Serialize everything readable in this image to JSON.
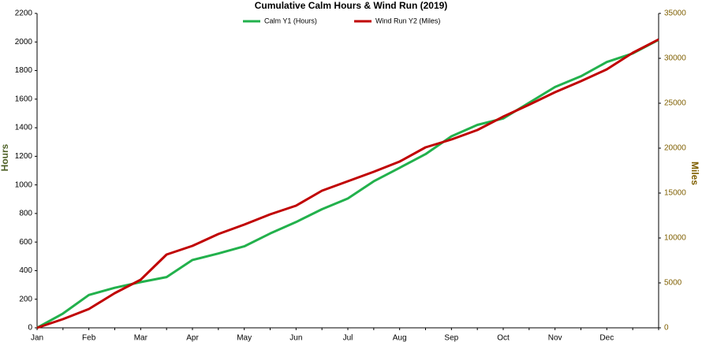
{
  "chart_data": {
    "type": "line",
    "title": "Cumulative Calm Hours & Wind Run (2019)",
    "categories": [
      "Jan",
      null,
      "Feb",
      null,
      "Mar",
      null,
      "Apr",
      null,
      "May",
      null,
      "Jun",
      null,
      "Jul",
      null,
      "Aug",
      null,
      "Sep",
      null,
      "Oct",
      null,
      "Nov",
      null,
      "Dec",
      null,
      null
    ],
    "series": [
      {
        "name": "Calm Y1 (Hours)",
        "color": "#22b14c",
        "axis": "y",
        "values": [
          0,
          100,
          230,
          280,
          320,
          355,
          475,
          520,
          570,
          660,
          740,
          830,
          905,
          1025,
          1120,
          1215,
          1340,
          1420,
          1465,
          1575,
          1685,
          1760,
          1860,
          1920,
          2015
        ]
      },
      {
        "name": "Wind Run Y2 (Miles)",
        "color": "#c00000",
        "axis": "y2",
        "values": [
          0,
          965,
          2100,
          3860,
          5350,
          8160,
          9120,
          10440,
          11490,
          12630,
          13600,
          15260,
          16320,
          17370,
          18510,
          20090,
          20965,
          22020,
          23510,
          24830,
          26230,
          27460,
          28770,
          30610,
          32100
        ]
      }
    ],
    "y_label": "Hours",
    "y2_label": "Miles",
    "ylim": [
      0,
      2200
    ],
    "yticks": [
      0,
      200,
      400,
      600,
      800,
      1000,
      1200,
      1400,
      1600,
      1800,
      2000,
      2200
    ],
    "y2lim": [
      0,
      35000
    ],
    "y2ticks": [
      0,
      5000,
      10000,
      15000,
      20000,
      25000,
      30000,
      35000
    ],
    "grid": false
  }
}
